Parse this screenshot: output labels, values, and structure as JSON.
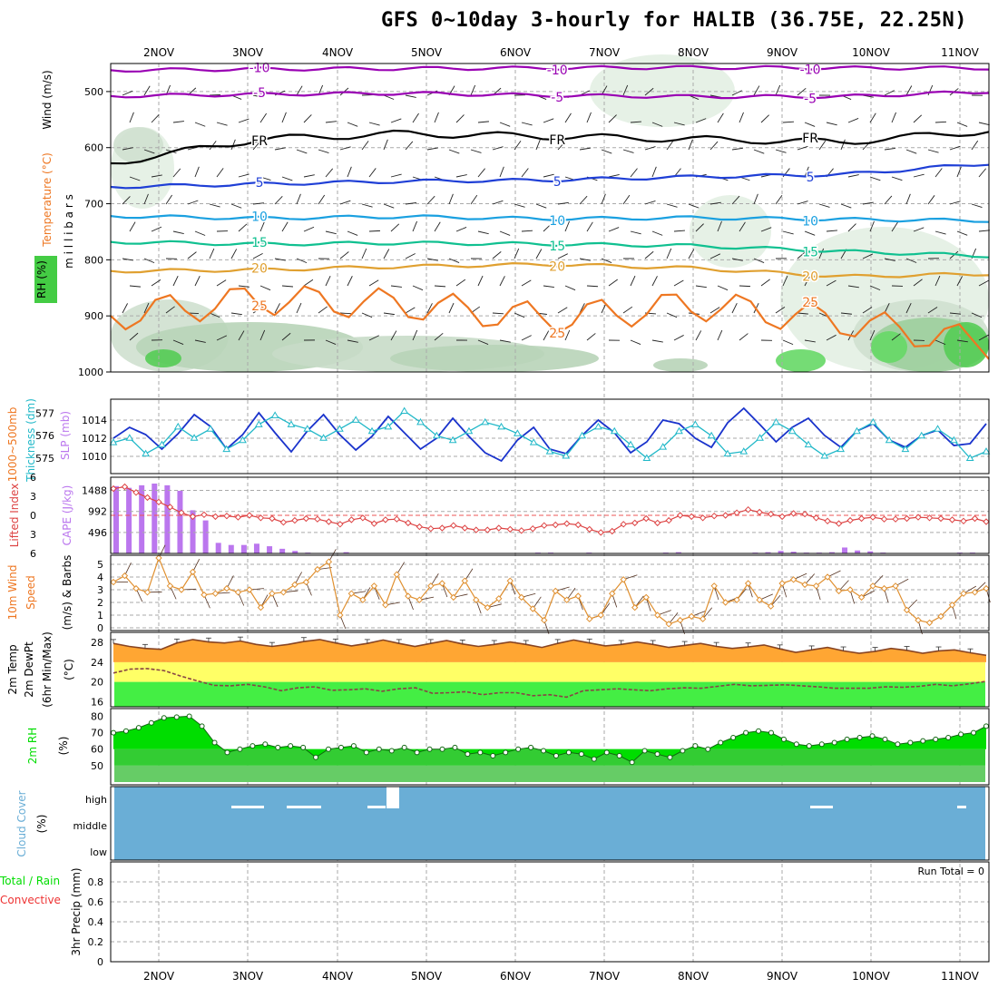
{
  "title": "GFS 0~10day 3-hourly for HALIB (36.75E, 22.25N)",
  "dates": [
    "2NOV",
    "3NOV",
    "4NOV",
    "5NOV",
    "6NOV",
    "7NOV",
    "8NOV",
    "9NOV",
    "10NOV",
    "11NOV"
  ],
  "run_total": "Run Total = 0",
  "colors": {
    "rh_fill": "#e3efe3",
    "purple": "#9900b3",
    "black": "#000000",
    "blue": "#1f3fd6",
    "lightblue": "#1aa0e0",
    "teal": "#10c090",
    "gold": "#e0a030",
    "orange": "#ee7722",
    "slp": "#1a33cc",
    "thick": "#20b8c8",
    "cape": "#bb77ee",
    "li": "#dd4444",
    "wind": "#e09030",
    "temp_fill": "#ffa633",
    "yellow": "#ffff66",
    "green": "#44ee44",
    "cloud": "#6aaed6",
    "rh2m": "#00dd00"
  },
  "labels": {
    "upper": [
      "Wind (m/s)",
      "Temperature (°C)",
      "RH (%)",
      "m i l l i b a r s"
    ],
    "thick": [
      "1000~500mb",
      "Thickness (dm)",
      "SLP (mb)"
    ],
    "li": [
      "Lifted Index",
      "CAPE (J/kg)"
    ],
    "wind": [
      "10m Wind",
      "Speed",
      "(m/s) & Barbs"
    ],
    "temp": [
      "2m Temp",
      "2m DewPt",
      "(6hr Min/Max)",
      "(°C)"
    ],
    "rh": [
      "2m RH",
      "(%)"
    ],
    "cloud": [
      "Cloud Cover",
      "(%)"
    ],
    "precip": [
      "Total / Rain",
      "Convective",
      "3hr Precip (mm)"
    ]
  },
  "chart_data": [
    {
      "type": "line",
      "name": "upper-air cross-section",
      "ylabel": "millibars",
      "yticks": [
        500,
        600,
        700,
        800,
        900,
        1000
      ],
      "ylim": [
        450,
        1000
      ],
      "contours": [
        {
          "label": "-10",
          "level_mb": [
            462,
            460,
            459,
            458,
            457,
            458,
            458
          ],
          "color": "purple"
        },
        {
          "label": "-5",
          "level_mb": [
            508,
            505,
            503,
            507,
            509,
            509,
            500
          ],
          "color": "purple"
        },
        {
          "label": "FR",
          "level_mb": [
            628,
            585,
            575,
            580,
            585,
            590,
            570
          ],
          "color": "black"
        },
        {
          "label": "5",
          "level_mb": [
            670,
            665,
            660,
            658,
            652,
            648,
            628
          ],
          "color": "blue"
        },
        {
          "label": "10",
          "level_mb": [
            722,
            726,
            723,
            727,
            725,
            728,
            730
          ],
          "color": "lightblue"
        },
        {
          "label": "15",
          "level_mb": [
            768,
            772,
            770,
            772,
            775,
            785,
            793
          ],
          "color": "teal"
        },
        {
          "label": "20",
          "level_mb": [
            820,
            818,
            812,
            808,
            815,
            830,
            825
          ],
          "color": "gold"
        },
        {
          "label": "25",
          "level_mb": [
            900,
            870,
            880,
            905,
            880,
            910,
            950
          ],
          "color": "orange"
        }
      ]
    },
    {
      "type": "line",
      "name": "thickness and SLP",
      "thickness_dm_ticks": [
        575,
        576,
        577
      ],
      "slp_mb_ticks": [
        1010,
        1012,
        1014
      ],
      "series": [
        {
          "name": "SLP (mb)",
          "values": [
            1012.0,
            1013.2,
            1012.4,
            1010.8,
            1012.5,
            1014.6,
            1013.3,
            1010.8,
            1012.4,
            1014.8,
            1012.6,
            1010.5,
            1012.8,
            1014.6,
            1012.4,
            1010.7,
            1012.2,
            1014.4,
            1012.6,
            1010.8,
            1012.0,
            1014.2,
            1012.2,
            1010.4,
            1009.5,
            1011.8,
            1013.2,
            1010.8,
            1010.3,
            1012.3,
            1014.0,
            1012.6,
            1010.4,
            1011.6,
            1014.0,
            1013.6,
            1012.0,
            1011.0,
            1013.7,
            1015.3,
            1013.5,
            1011.6,
            1013.2,
            1014.2,
            1012.3,
            1011.0,
            1012.8,
            1013.6,
            1011.8,
            1011.0,
            1012.3,
            1012.9,
            1011.2,
            1011.4,
            1013.6
          ]
        },
        {
          "name": "Thickness (dm)",
          "values": [
            575.7,
            575.9,
            575.2,
            575.6,
            576.4,
            575.9,
            576.3,
            575.4,
            575.8,
            576.5,
            576.9,
            576.5,
            576.3,
            575.9,
            576.3,
            576.7,
            576.2,
            576.4,
            577.1,
            576.6,
            576.0,
            575.8,
            576.2,
            576.6,
            576.4,
            576.1,
            575.7,
            575.3,
            575.1,
            576.0,
            576.4,
            576.2,
            575.6,
            575.0,
            575.5,
            576.2,
            576.5,
            576.0,
            575.2,
            575.3,
            575.9,
            576.6,
            576.2,
            575.6,
            575.1,
            575.4,
            576.2,
            576.6,
            575.8,
            575.4,
            576.0,
            576.3,
            575.8,
            575.0,
            575.3
          ]
        }
      ]
    },
    {
      "type": "bar",
      "name": "CAPE and Lifted Index",
      "cape_ticks": [
        496,
        992,
        1488
      ],
      "li_ticks": [
        -6,
        -3,
        0,
        3,
        6
      ],
      "series": [
        {
          "name": "CAPE (J/kg)",
          "values": [
            1590,
            1550,
            1610,
            1650,
            1610,
            1480,
            1020,
            780,
            250,
            200,
            200,
            230,
            170,
            110,
            60,
            20,
            10,
            10,
            30,
            0,
            0,
            0,
            0,
            0,
            0,
            10,
            10,
            0,
            0,
            0,
            0,
            0,
            10,
            20,
            20,
            10,
            10,
            20,
            10,
            0,
            0,
            0,
            10,
            20,
            30,
            10,
            0,
            0,
            0,
            10,
            20,
            30,
            60,
            40,
            20,
            20,
            30,
            140,
            70,
            50,
            20,
            10,
            0,
            0,
            0,
            0,
            20,
            20,
            0
          ]
        },
        {
          "name": "Lifted Index",
          "values": [
            -4.2,
            -4.5,
            -3.6,
            -2.8,
            -2.1,
            -1.3,
            -0.4,
            0.2,
            -0.1,
            0.2,
            0.1,
            0.3,
            0.0,
            0.4,
            0.5,
            1.1,
            0.8,
            0.5,
            0.6,
            1.0,
            1.4,
            0.7,
            0.4,
            1.3,
            0.7,
            0.6,
            1.2,
            1.8,
            2.1,
            2.0,
            1.6,
            2.0,
            2.3,
            2.3,
            2.0,
            2.2,
            2.4,
            2.1,
            1.6,
            1.5,
            1.3,
            1.5,
            2.2,
            2.7,
            2.5,
            1.4,
            1.2,
            0.5,
            1.2,
            0.8,
            0.0,
            0.2,
            0.4,
            0.1,
            0.0,
            -0.4,
            -0.9,
            -0.5,
            -0.2,
            0.2,
            -0.3,
            -0.2,
            0.4,
            0.9,
            1.3,
            0.8,
            0.5,
            0.3,
            0.6,
            0.6,
            0.5,
            0.3,
            0.4,
            0.5,
            0.7,
            0.9,
            0.5,
            1.0
          ]
        }
      ]
    },
    {
      "type": "line",
      "name": "10m wind speed",
      "yticks": [
        0,
        1,
        2,
        3,
        4,
        5
      ],
      "ylim": [
        0,
        5.5
      ],
      "series": [
        {
          "name": "Speed (m/s)",
          "values": [
            3.6,
            4.1,
            3.1,
            2.8,
            5.5,
            3.3,
            3.0,
            4.4,
            2.6,
            2.7,
            3.1,
            2.8,
            3.0,
            1.6,
            2.7,
            2.8,
            3.4,
            3.6,
            4.6,
            5.2,
            1.0,
            2.7,
            2.2,
            3.3,
            1.8,
            4.2,
            2.5,
            2.2,
            3.3,
            3.5,
            2.4,
            3.7,
            2.2,
            1.6,
            2.3,
            3.7,
            2.4,
            1.5,
            0.6,
            2.9,
            2.2,
            2.5,
            0.7,
            1.0,
            2.7,
            3.8,
            1.6,
            2.4,
            1.0,
            0.3,
            0.6,
            0.9,
            0.7,
            3.3,
            2.0,
            2.2,
            3.5,
            2.2,
            1.7,
            3.5,
            3.8,
            3.4,
            3.3,
            4.0,
            2.9,
            3.0,
            2.4,
            3.3,
            3.1,
            3.3,
            1.4,
            0.6,
            0.4,
            0.9,
            1.8,
            2.7,
            2.8,
            3.1
          ]
        }
      ]
    },
    {
      "type": "area",
      "name": "2m temperature and dew point",
      "yticks": [
        16,
        20,
        24,
        28
      ],
      "ylim": [
        15.5,
        29.5
      ],
      "series": [
        {
          "name": "2m Temp",
          "values": [
            27.8,
            27.2,
            26.8,
            26.6,
            27.9,
            28.6,
            28.1,
            27.9,
            28.3,
            27.6,
            27.2,
            27.6,
            28.2,
            28.6,
            27.9,
            27.3,
            27.8,
            28.5,
            27.8,
            27.2,
            27.8,
            28.4,
            27.7,
            27.2,
            27.6,
            28.1,
            27.6,
            27.0,
            27.8,
            28.5,
            27.9,
            27.3,
            27.6,
            28.1,
            27.6,
            27.0,
            27.4,
            27.8,
            27.2,
            26.8,
            27.1,
            27.5,
            26.7,
            26.0,
            26.5,
            27.0,
            26.3,
            25.8,
            26.2,
            26.8,
            26.4,
            25.8,
            26.3,
            26.5,
            25.9,
            25.4
          ]
        },
        {
          "name": "2m DewPt",
          "values": [
            21.8,
            22.6,
            22.7,
            22.3,
            21.2,
            20.2,
            19.3,
            19.2,
            19.5,
            19.0,
            18.2,
            18.8,
            19.0,
            18.3,
            18.4,
            18.6,
            18.1,
            18.6,
            18.8,
            17.7,
            17.8,
            18.0,
            17.4,
            17.8,
            17.8,
            17.2,
            17.4,
            16.9,
            18.2,
            18.4,
            18.6,
            18.4,
            18.2,
            18.6,
            18.8,
            18.7,
            19.1,
            19.5,
            19.2,
            19.3,
            19.4,
            19.2,
            19.0,
            18.7,
            18.7,
            18.7,
            19.0,
            18.9,
            19.1,
            19.5,
            19.2,
            19.6,
            20.1
          ]
        }
      ]
    },
    {
      "type": "area",
      "name": "2m relative humidity",
      "yticks": [
        50,
        60,
        70,
        80
      ],
      "ylim": [
        40,
        83
      ],
      "series": [
        {
          "name": "2m RH (%)",
          "values": [
            70,
            71,
            73,
            76,
            79,
            79.5,
            80,
            74,
            64,
            58,
            60,
            62,
            63,
            61,
            62,
            61,
            55,
            60,
            61,
            62,
            58,
            60,
            59,
            61,
            58,
            60,
            60,
            61,
            57,
            58,
            56,
            58,
            60,
            61,
            59,
            56,
            58,
            57,
            54,
            58,
            56,
            52,
            59,
            57,
            55,
            59,
            62,
            60,
            64,
            67,
            70,
            71,
            70,
            66,
            63,
            62,
            63,
            64,
            66,
            67,
            68,
            66,
            63,
            64,
            65,
            66,
            67,
            69,
            70,
            74
          ]
        }
      ]
    },
    {
      "type": "bar",
      "name": "cloud cover",
      "yticklabels": [
        "high",
        "middle",
        "low"
      ],
      "series": [
        {
          "name": "high cloud clear periods",
          "values": [
            0.1,
            0.05,
            0.1,
            0.9,
            0.1
          ]
        }
      ]
    },
    {
      "type": "bar",
      "name": "3hr precipitation",
      "yticks": [
        0,
        0.2,
        0.4,
        0.6,
        0.8
      ],
      "ylim": [
        0,
        1.0
      ],
      "series": [
        {
          "name": "Total / Rain",
          "values": []
        },
        {
          "name": "Convective",
          "values": []
        }
      ]
    }
  ]
}
